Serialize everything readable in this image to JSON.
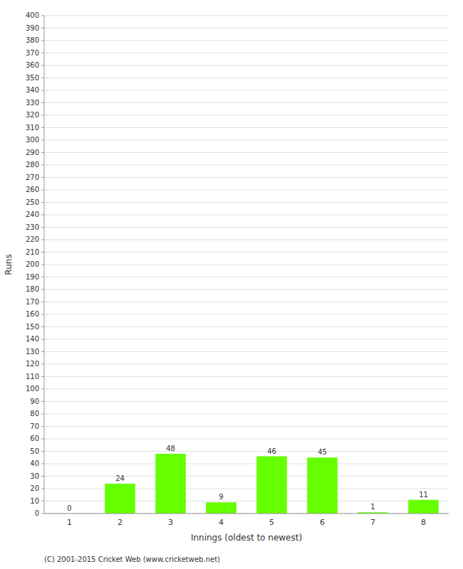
{
  "chart_data": {
    "type": "bar",
    "xlabel": "Innings (oldest to newest)",
    "ylabel": "Runs",
    "categories": [
      "1",
      "2",
      "3",
      "4",
      "5",
      "6",
      "7",
      "8"
    ],
    "values": [
      0,
      24,
      48,
      9,
      46,
      45,
      1,
      11
    ],
    "color": "#66ff00",
    "ylim": [
      0,
      400
    ],
    "yticks": [
      0,
      10,
      20,
      30,
      40,
      50,
      60,
      70,
      80,
      90,
      100,
      110,
      120,
      130,
      140,
      150,
      160,
      170,
      180,
      190,
      200,
      210,
      220,
      230,
      240,
      250,
      260,
      270,
      280,
      290,
      300,
      310,
      320,
      330,
      340,
      350,
      360,
      370,
      380,
      390,
      400
    ],
    "grid": true,
    "data_labels": true,
    "annotations": [
      "(C) 2001-2015 Cricket Web (www.cricketweb.net)"
    ]
  }
}
